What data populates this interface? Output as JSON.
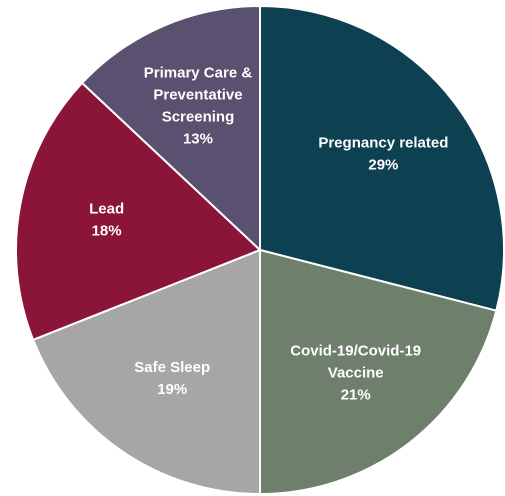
{
  "chart_data": {
    "type": "pie",
    "categories": [
      "Pregnancy related",
      "Covid-19/Covid-19 Vaccine",
      "Safe Sleep",
      "Lead",
      "Primary Care & Preventative Screening"
    ],
    "values": [
      29,
      21,
      19,
      18,
      13
    ],
    "value_labels": [
      "29%",
      "21%",
      "19%",
      "18%",
      "13%"
    ],
    "colors": [
      "#0d4050",
      "#6e7f6c",
      "#a6a6a6",
      "#8b1538",
      "#5a5070"
    ]
  }
}
